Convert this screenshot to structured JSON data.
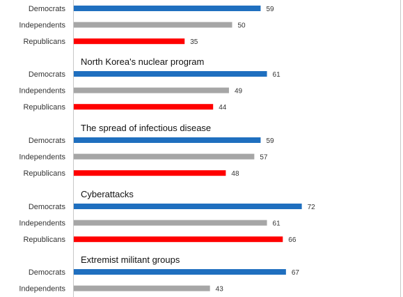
{
  "chart_data": {
    "type": "bar",
    "orientation": "horizontal",
    "title": "",
    "xlabel": "",
    "ylabel": "",
    "xlim": [
      0,
      100
    ],
    "grid": false,
    "legend": "none",
    "colors": {
      "Democrats": "#1f6fbf",
      "Independents": "#a6a6a6",
      "Republicans": "#ff0000"
    },
    "groups": [
      {
        "title": "",
        "bars": [
          {
            "category": "Democrats",
            "value": 59
          },
          {
            "category": "Independents",
            "value": 50
          },
          {
            "category": "Republicans",
            "value": 35
          }
        ]
      },
      {
        "title": "North Korea's nuclear program",
        "bars": [
          {
            "category": "Democrats",
            "value": 61
          },
          {
            "category": "Independents",
            "value": 49
          },
          {
            "category": "Republicans",
            "value": 44
          }
        ]
      },
      {
        "title": "The spread of infectious disease",
        "bars": [
          {
            "category": "Democrats",
            "value": 59
          },
          {
            "category": "Independents",
            "value": 57
          },
          {
            "category": "Republicans",
            "value": 48
          }
        ]
      },
      {
        "title": "Cyberattacks",
        "bars": [
          {
            "category": "Democrats",
            "value": 72
          },
          {
            "category": "Independents",
            "value": 61
          },
          {
            "category": "Republicans",
            "value": 66
          }
        ]
      },
      {
        "title": "Extremist militant groups",
        "bars": [
          {
            "category": "Democrats",
            "value": 67
          },
          {
            "category": "Independents",
            "value": 43
          }
        ]
      }
    ]
  }
}
